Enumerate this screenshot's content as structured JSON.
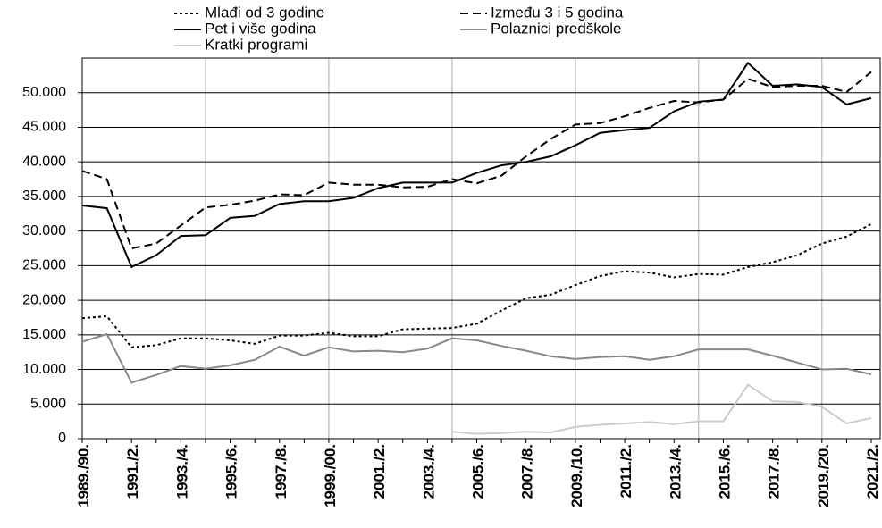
{
  "chart_data": {
    "type": "line",
    "categories": [
      "1989./90.",
      null,
      "1991./2.",
      null,
      "1993./4.",
      null,
      "1995./6.",
      null,
      "1997./8.",
      null,
      "1999./00.",
      null,
      "2001./2.",
      null,
      "2003./4.",
      null,
      "2005./6.",
      null,
      "2007./8.",
      null,
      "2009./10.",
      null,
      "2011./2.",
      null,
      "2013./4.",
      null,
      "2015./6.",
      null,
      "2017./8.",
      null,
      "2019./20.",
      null,
      "2021./2."
    ],
    "ylim": [
      0,
      55000
    ],
    "yticks": [
      0,
      {
        "value": 5000,
        "label": "5.000"
      },
      {
        "value": 10000,
        "label": "10.000"
      },
      {
        "value": 15000,
        "label": "15.000"
      },
      {
        "value": 20000,
        "label": "20.000"
      },
      {
        "value": 25000,
        "label": "25.000"
      },
      {
        "value": 30000,
        "label": "30.000"
      },
      {
        "value": 35000,
        "label": "35.000"
      },
      {
        "value": 40000,
        "label": "40.000"
      },
      {
        "value": 45000,
        "label": "45.000"
      },
      {
        "value": 50000,
        "label": "50.000"
      }
    ],
    "grid": true,
    "series": [
      {
        "name": "Mlađi od 3 godine",
        "color": "#000000",
        "dash": "3,3",
        "values": [
          17400,
          17700,
          13200,
          13500,
          14500,
          14500,
          14200,
          13700,
          14900,
          14900,
          15300,
          14800,
          14800,
          15800,
          15900,
          16000,
          16600,
          18500,
          20300,
          20800,
          22200,
          23500,
          24200,
          24000,
          23300,
          23800,
          23700,
          24800,
          25500,
          26500,
          28200,
          29200,
          31000
        ]
      },
      {
        "name": "Između 3 i 5 godina",
        "color": "#000000",
        "dash": "9,5",
        "values": [
          38700,
          37500,
          27500,
          28200,
          30800,
          33400,
          33800,
          34400,
          35300,
          35200,
          37000,
          36700,
          36700,
          36300,
          36400,
          37500,
          36900,
          38000,
          40800,
          43300,
          45400,
          45600,
          46600,
          47800,
          48800,
          48600,
          49000,
          52000,
          50800,
          51000,
          51000,
          50100,
          53000
        ]
      },
      {
        "name": "Pet i više godina",
        "color": "#000000",
        "dash": "none",
        "values": [
          33700,
          33300,
          24800,
          26500,
          29300,
          29400,
          31900,
          32200,
          33900,
          34300,
          34300,
          34800,
          36200,
          37000,
          37000,
          37000,
          38400,
          39500,
          40000,
          40800,
          42400,
          44200,
          44600,
          44900,
          47300,
          48700,
          49000,
          54300,
          51000,
          51200,
          50800,
          48300,
          49200
        ]
      },
      {
        "name": "Polaznici predškole",
        "color": "#888888",
        "dash": "none",
        "values": [
          14000,
          15100,
          8100,
          9200,
          10500,
          10100,
          10600,
          11400,
          13300,
          12000,
          13200,
          12600,
          12700,
          12500,
          13000,
          14500,
          14200,
          13400,
          12700,
          11900,
          11500,
          11800,
          11900,
          11400,
          11900,
          12900,
          12900,
          12900,
          12000,
          11000,
          10000,
          10100,
          9300
        ]
      },
      {
        "name": "Kratki programi",
        "color": "#cccccc",
        "dash": "none",
        "values": [
          null,
          null,
          null,
          null,
          null,
          null,
          null,
          null,
          null,
          null,
          null,
          null,
          null,
          null,
          null,
          1000,
          700,
          800,
          1000,
          900,
          1700,
          2000,
          2200,
          2400,
          2100,
          2500,
          2500,
          7800,
          5400,
          5300,
          4600,
          2200,
          3000
        ]
      }
    ]
  }
}
